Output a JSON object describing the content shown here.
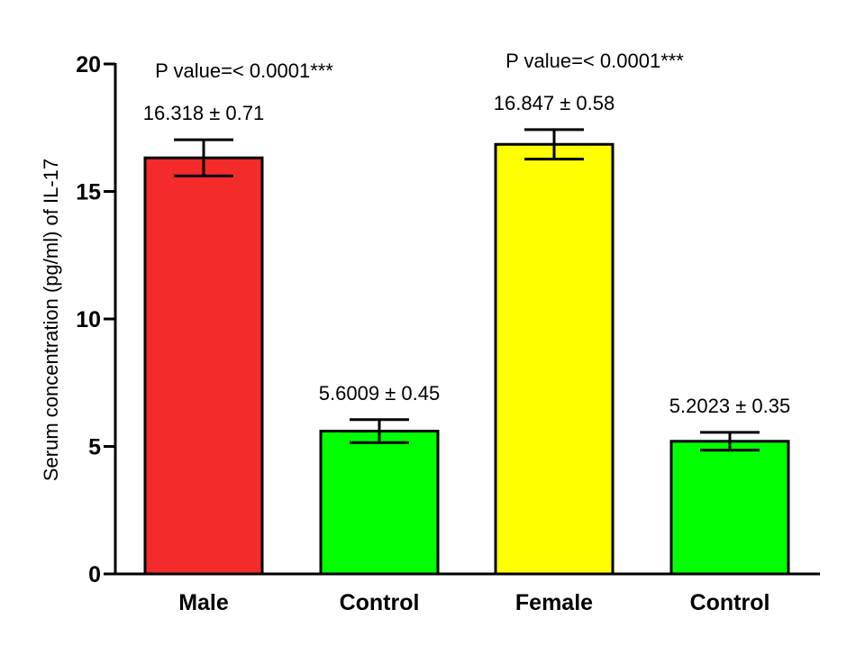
{
  "chart_data": {
    "type": "bar",
    "title": "",
    "xlabel": "",
    "ylabel": "Serum concentration (pg/ml) of IL-17",
    "ylim": [
      0,
      20
    ],
    "yticks": [
      0,
      5,
      10,
      15,
      20
    ],
    "grid": false,
    "categories": [
      "Male",
      "Control",
      "Female",
      "Control"
    ],
    "values": [
      16.318,
      5.6009,
      16.847,
      5.2023
    ],
    "errors": [
      0.71,
      0.45,
      0.58,
      0.35
    ],
    "colors": [
      "#f42b2b",
      "#00ff00",
      "#ffff00",
      "#00ff00"
    ],
    "value_labels": [
      "16.318 ± 0.71",
      "5.6009 ± 0.45",
      "16.847 ± 0.58",
      "5.2023 ± 0.35"
    ],
    "annotations": [
      {
        "text": "P value=< 0.0001***",
        "bar_index": 0
      },
      {
        "text": "P value=< 0.0001***",
        "bar_index": 2
      }
    ]
  }
}
